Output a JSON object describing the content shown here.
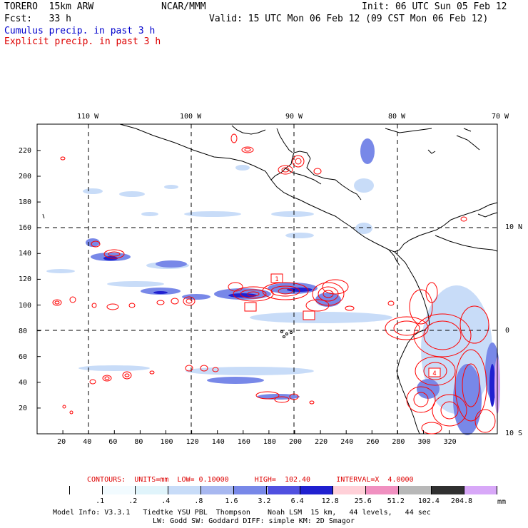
{
  "header": {
    "model": "TORERO  15km ARW",
    "org": "NCAR/MMM",
    "init": "Init: 06 UTC Sun 05 Feb 12",
    "fcst": "Fcst:   33 h",
    "valid": "Valid: 15 UTC Mon 06 Feb 12 (09 CST Mon 06 Feb 12)",
    "cumulus": "Cumulus precip. in past 3 h",
    "explicit": "Explicit precip. in past 3 h"
  },
  "colors": {
    "cumulus_text": "#0000cc",
    "explicit_text": "#dd0000",
    "contour": "#ff0000",
    "coast": "#000000"
  },
  "map": {
    "lon_labels": [
      "110 W",
      "100 W",
      "90 W",
      "80 W",
      "70 W"
    ],
    "lat_labels": [
      "10 N",
      "0",
      "10 S"
    ],
    "x_ticks": [
      "20",
      "40",
      "60",
      "80",
      "100",
      "120",
      "140",
      "160",
      "180",
      "200",
      "220",
      "240",
      "260",
      "280",
      "300",
      "320"
    ],
    "y_ticks": [
      "220",
      "200",
      "180",
      "160",
      "140",
      "120",
      "100",
      "80",
      "60",
      "40",
      "20"
    ],
    "max_labels": [
      "1",
      "4"
    ]
  },
  "contours": {
    "title": "CONTOURS:  UNITS=mm  LOW= 0.10000      HIGH=  102.40      INTERVAL=X  4.0000"
  },
  "legend": {
    "colors": [
      "#ffffff",
      "#ffffff",
      "#f2fbff",
      "#e0f4fb",
      "#c8dcf8",
      "#a8b8f0",
      "#7888e8",
      "#5050e0",
      "#2020d0",
      "#ffd0d8",
      "#f090c0",
      "#b8b8b8",
      "#303030",
      "#d8a8f8"
    ],
    "labels": [
      ".1",
      ".2",
      ".4",
      ".8",
      "1.6",
      "3.2",
      "6.4",
      "12.8",
      "25.6",
      "51.2",
      "102.4",
      "204.8"
    ],
    "unit": "mm"
  },
  "footer": {
    "line1": "Model Info: V3.3.1   Tiedtke YSU PBL  Thompson    Noah LSM  15 km,   44 levels,   44 sec",
    "line2": "LW: Godd SW: Goddard DIFF: simple KM: 2D Smagor"
  }
}
